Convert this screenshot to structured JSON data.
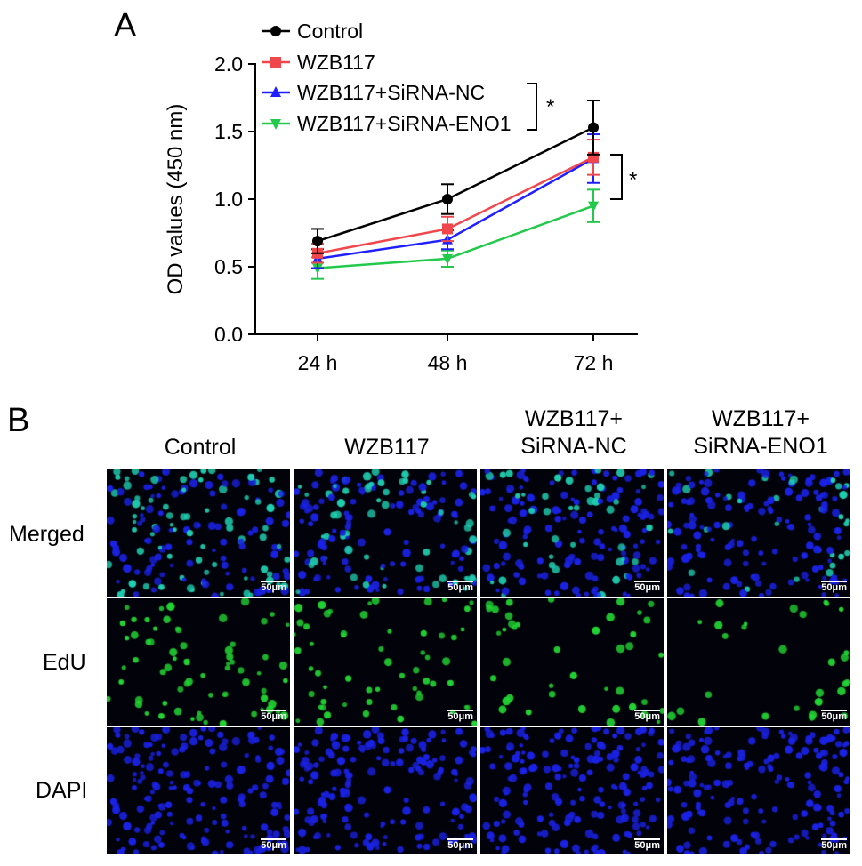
{
  "panel_a": {
    "letter": "A"
  },
  "panel_b": {
    "letter": "B"
  },
  "chart_data": {
    "type": "line",
    "x": [
      "24 h",
      "48 h",
      "72 h"
    ],
    "ylabel": "OD values (450 nm)",
    "xlabel": "",
    "ylim": [
      0,
      2.0
    ],
    "yticks": [
      "0.0",
      "0.5",
      "1.0",
      "1.5",
      "2.0"
    ],
    "legend_position": "top-left",
    "grid": false,
    "series": [
      {
        "name": "Control",
        "values": [
          0.69,
          1.0,
          1.53
        ],
        "errors": [
          0.09,
          0.11,
          0.2
        ],
        "color": "#000000",
        "marker": "circle"
      },
      {
        "name": "WZB117",
        "values": [
          0.6,
          0.78,
          1.31
        ],
        "errors": [
          0.07,
          0.09,
          0.13
        ],
        "color": "#f0474d",
        "marker": "square"
      },
      {
        "name": "WZB117+SiRNA-NC",
        "values": [
          0.56,
          0.7,
          1.3
        ],
        "errors": [
          0.07,
          0.07,
          0.18
        ],
        "color": "#1f1fff",
        "marker": "triangle-up"
      },
      {
        "name": "WZB117+SiRNA-ENO1",
        "values": [
          0.49,
          0.56,
          0.95
        ],
        "errors": [
          0.08,
          0.06,
          0.12
        ],
        "color": "#22c94a",
        "marker": "triangle-down"
      }
    ],
    "annotations": [
      {
        "text": "*",
        "between": [
          "WZB117+SiRNA-NC",
          "WZB117+SiRNA-ENO1"
        ],
        "location": "legend"
      },
      {
        "text": "*",
        "between": [
          "WZB117+SiRNA-NC",
          "WZB117+SiRNA-ENO1"
        ],
        "location": "72 h"
      }
    ]
  },
  "micrographs": {
    "columns": [
      "Control",
      "WZB117",
      "WZB117+\nSiRNA-NC",
      "WZB117+\nSiRNA-ENO1"
    ],
    "rows": [
      "Merged",
      "EdU",
      "DAPI"
    ],
    "scale_bar": "50μm",
    "colors": {
      "edu": "#22d633",
      "dapi": "#1a22e6",
      "merged_mix": "#1fcfb0"
    }
  }
}
